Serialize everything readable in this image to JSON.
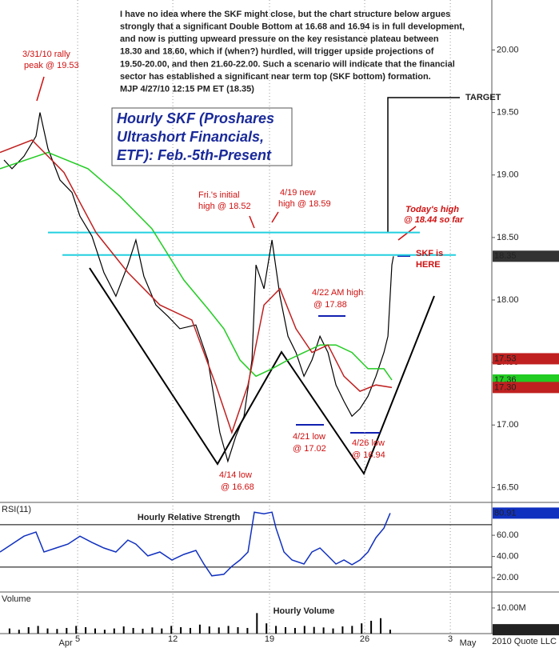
{
  "chart_data": [
    {
      "type": "line",
      "title": [
        "Hourly SKF (Proshares",
        "Ultrashort Financials,",
        "ETF): Feb.-5th-Present"
      ],
      "note": [
        "I have no idea where the SKF might close, but the chart structure below argues",
        "strongly that a significant Double Bottom at 16.68 and 16.94 is in full development,",
        "and now is putting upweard pressure on the key resistance plateau between",
        "18.30 and 18.60, which if (when?) hurdled, will trigger upside projections of",
        "19.50-20.00, and then 21.60-22.00. Such a scenario will indicate that the financial",
        "sector has established a significant near term top (SKF bottom) formation.",
        "MJP  4/27/10 12:15 PM ET (18.35)"
      ],
      "annotations": [
        "3/31/10 rally",
        "peak @ 19.53",
        "Fri.'s initial",
        "high @ 18.52",
        "4/19 new",
        "high @ 18.59",
        "Today's high",
        "@ 18.44 so far",
        "SKF is",
        "HERE",
        "4/22 AM high",
        "@ 17.88",
        "4/21 low",
        "@ 17.02",
        "4/26 low",
        "@ 16.94",
        "4/14 low",
        "@ 16.68",
        "TARGET"
      ],
      "xlim": [
        0,
        25.84
      ],
      "ylim": [
        16.4,
        20.4
      ],
      "yticks": [
        {
          "value": 16.5,
          "label": "16.50"
        },
        {
          "value": 17,
          "label": "17.00"
        },
        {
          "value": 17.5,
          "label": "17.50"
        },
        {
          "value": 18,
          "label": "18.00"
        },
        {
          "value": 18.5,
          "label": "18.50"
        },
        {
          "value": 19,
          "label": "19.00"
        },
        {
          "value": 19.5,
          "label": "19.50"
        },
        {
          "value": 20,
          "label": "20.00"
        }
      ],
      "levels": [
        {
          "value": 18.54,
          "x": [
            2.52,
            22.06
          ],
          "color": "#22d0e0"
        },
        {
          "value": 18.36,
          "x": [
            3.28,
            23.95
          ],
          "color": "#22d0e0"
        }
      ],
      "series": [
        {
          "color": "#000000",
          "x": [
            0.21,
            0.63,
            1.26,
            1.89,
            2.1,
            2.52,
            3.15,
            3.78,
            4.2,
            4.83,
            5.46,
            6.09,
            6.72,
            7.14,
            7.56,
            8.19,
            8.82,
            9.45,
            10.29,
            10.92,
            11.55,
            11.97,
            12.39,
            12.82,
            13.24,
            13.45,
            13.87,
            14.29,
            14.71,
            15.13,
            15.55,
            15.97,
            16.39,
            16.81,
            17.23,
            17.65,
            18.07,
            18.49,
            18.91,
            19.33,
            19.75,
            20.17,
            20.38,
            20.59,
            20.67
          ],
          "values": [
            19.12,
            19.05,
            19.15,
            19.31,
            19.5,
            19.21,
            18.96,
            18.86,
            18.67,
            18.51,
            18.22,
            18.03,
            18.28,
            18.48,
            18.19,
            17.96,
            17.87,
            17.77,
            17.8,
            17.52,
            16.94,
            16.71,
            16.91,
            17.07,
            17.52,
            18.28,
            18.09,
            18.48,
            18.03,
            17.71,
            17.58,
            17.39,
            17.52,
            17.71,
            17.58,
            17.32,
            17.19,
            17.07,
            17.13,
            17.23,
            17.39,
            17.58,
            17.71,
            18.28,
            18.35
          ]
        },
        {
          "color": "#22cc22",
          "x": [
            0,
            2.52,
            4.62,
            6.3,
            7.98,
            9.66,
            10.92,
            11.76,
            12.61,
            13.45,
            14.29,
            15.13,
            15.97,
            16.81,
            17.65,
            18.49,
            19.33,
            20.17,
            20.59
          ],
          "values": [
            19.05,
            19.18,
            19.05,
            18.83,
            18.57,
            18.16,
            17.93,
            17.77,
            17.52,
            17.39,
            17.45,
            17.52,
            17.58,
            17.64,
            17.64,
            17.58,
            17.45,
            17.45,
            17.36
          ]
        },
        {
          "color": "#c02020",
          "x": [
            0,
            1.68,
            3.36,
            5.04,
            6.72,
            8.4,
            10.08,
            11.34,
            12.18,
            13.03,
            13.87,
            14.71,
            15.55,
            16.39,
            17.23,
            18.07,
            18.91,
            19.75,
            20.59
          ],
          "values": [
            19.18,
            19.28,
            19.02,
            18.54,
            18.22,
            17.96,
            17.84,
            17.32,
            16.94,
            17.32,
            17.96,
            18.09,
            17.77,
            17.58,
            17.64,
            17.39,
            17.27,
            17.32,
            17.3
          ]
        }
      ],
      "last_labels": [
        {
          "value": 18.35,
          "label": "18.35",
          "color": "#333333"
        },
        {
          "value": 17.53,
          "label": "17.53",
          "color": "#c02020"
        },
        {
          "value": 17.36,
          "label": "17.36",
          "color": "#22cc22"
        },
        {
          "value": 17.3,
          "label": "17.30",
          "color": "#c02020"
        }
      ]
    },
    {
      "type": "line",
      "indicator": "RSI(11)",
      "title": "Hourly Relative Strength",
      "xlim": [
        0,
        25.84
      ],
      "ylim": [
        8,
        88
      ],
      "yticks": [
        {
          "value": 20,
          "label": "20.00"
        },
        {
          "value": 40,
          "label": "40.00"
        },
        {
          "value": 60,
          "label": "60.00"
        }
      ],
      "levels": [
        {
          "value": 70,
          "color": "#000000"
        },
        {
          "value": 30,
          "color": "#000000"
        }
      ],
      "series": [
        {
          "color": "#1030c0",
          "x": [
            0,
            0.63,
            1.26,
            1.89,
            2.31,
            2.94,
            3.57,
            4.2,
            4.83,
            5.46,
            6.09,
            6.72,
            7.14,
            7.77,
            8.4,
            9.03,
            9.66,
            10.29,
            10.71,
            11.13,
            11.76,
            12.18,
            12.61,
            13.03,
            13.36,
            13.87,
            14.29,
            14.5,
            14.92,
            15.34,
            15.97,
            16.39,
            16.81,
            17.23,
            17.65,
            18.07,
            18.49,
            18.91,
            19.33,
            19.75,
            20.17,
            20.5
          ],
          "values": [
            44.2,
            51.7,
            59.2,
            63.0,
            44.2,
            48.0,
            51.7,
            59.2,
            53.2,
            48.0,
            44.2,
            55.5,
            51.7,
            40.5,
            44.2,
            36.7,
            42.0,
            45.7,
            32.9,
            21.7,
            23.2,
            30.7,
            36.7,
            44.2,
            81.8,
            80.3,
            81.8,
            66.8,
            44.2,
            36.7,
            32.9,
            44.2,
            48.0,
            40.5,
            32.9,
            36.7,
            32.2,
            36.7,
            44.2,
            57.7,
            66.8,
            80.9
          ]
        }
      ],
      "last_labels": [
        {
          "value": 80.91,
          "label": "80.91",
          "color": "#1030c0"
        }
      ]
    },
    {
      "type": "bar",
      "indicator": "Volume",
      "title": "Hourly Volume",
      "credit": "2010 Quote LLC",
      "xlim": [
        0,
        25.84
      ],
      "ylim": [
        0,
        15.6
      ],
      "yticks": [
        {
          "value": 10,
          "label": "10.00M"
        }
      ],
      "xticks": [
        {
          "value": 4.08,
          "label": "5"
        },
        {
          "value": 9.08,
          "label": "12"
        },
        {
          "value": 14.16,
          "label": "19"
        },
        {
          "value": 19.16,
          "label": "26"
        },
        {
          "value": 23.66,
          "label": "3"
        }
      ],
      "month_labels": [
        {
          "value": 3.45,
          "label": "Apr"
        },
        {
          "value": 24.58,
          "label": "May"
        }
      ],
      "grid": true,
      "series": [
        {
          "color": "#000000",
          "x": [
            0.5,
            1,
            1.5,
            2,
            2.5,
            3,
            3.5,
            4,
            4.5,
            5,
            5.5,
            6,
            6.5,
            7,
            7.5,
            8,
            8.5,
            9,
            9.5,
            10,
            10.5,
            11,
            11.5,
            12,
            12.5,
            13,
            13.5,
            14,
            14.5,
            15,
            15.5,
            16,
            16.5,
            17,
            17.5,
            18,
            18.5,
            19,
            19.5,
            20,
            20.5
          ],
          "values": [
            2,
            1.5,
            2.5,
            3,
            2,
            1.8,
            2.2,
            3,
            2.5,
            2,
            1.5,
            2,
            2.8,
            2.2,
            1.9,
            2.4,
            2,
            3,
            2.5,
            2.2,
            3.5,
            2.8,
            2.4,
            3,
            2.5,
            2.2,
            8,
            4,
            3,
            2.5,
            2.2,
            3,
            2.6,
            2.4,
            2,
            2.8,
            3,
            4,
            5,
            6,
            1.52
          ]
        }
      ],
      "last_labels": [
        {
          "value": 1.52,
          "label": "1.52M",
          "color": "#222222"
        }
      ]
    }
  ]
}
